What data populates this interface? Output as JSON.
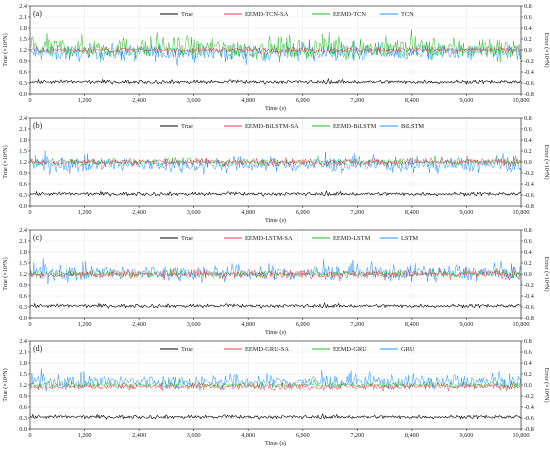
{
  "chart_data": [
    {
      "type": "line",
      "panel_label": "(a)",
      "xlabel": "Time (s)",
      "ylabel_left": "True (×10⁴N)",
      "ylabel_right": "Error (×10⁴N)",
      "xlim": [
        0,
        10800
      ],
      "ylim_left": [
        0,
        2.4
      ],
      "ylim_right": [
        -0.8,
        0.8
      ],
      "x_ticks": [
        "0",
        "1,200",
        "2,400",
        "3,600",
        "4,800",
        "6,000",
        "7,200",
        "8,400",
        "9,600",
        "10,800"
      ],
      "y_ticks_left": [
        "0.0",
        "0.3",
        "0.6",
        "0.9",
        "1.2",
        "1.5",
        "1.8",
        "2.1",
        "2.4"
      ],
      "y_ticks_right": [
        "-0.8",
        "-0.6",
        "-0.4",
        "-0.2",
        "0.0",
        "0.2",
        "0.4",
        "0.6",
        "0.8"
      ],
      "legend": [
        "True",
        "EEMD-TCN-SA",
        "EEMD-TCN",
        "TCN"
      ],
      "series": [
        {
          "name": "True",
          "axis": "left",
          "color": "#000000",
          "approx_mean": 0.33,
          "approx_amplitude": 0.05
        },
        {
          "name": "EEMD-TCN-SA",
          "axis": "right",
          "color": "#e8384f",
          "approx_mean": 0.0,
          "approx_amplitude": 0.05
        },
        {
          "name": "EEMD-TCN",
          "axis": "right",
          "color": "#22bb22",
          "approx_mean": 0.03,
          "approx_amplitude": 0.2
        },
        {
          "name": "TCN",
          "axis": "right",
          "color": "#1e90ff",
          "approx_mean": -0.05,
          "approx_amplitude": 0.15
        }
      ],
      "grid": true
    },
    {
      "type": "line",
      "panel_label": "(b)",
      "xlabel": "Time (s)",
      "ylabel_left": "True (×10⁴N)",
      "ylabel_right": "Error (×10⁴N)",
      "xlim": [
        0,
        10800
      ],
      "ylim_left": [
        0,
        2.4
      ],
      "ylim_right": [
        -0.8,
        0.8
      ],
      "x_ticks": [
        "0",
        "1,200",
        "2,400",
        "3,600",
        "4,800",
        "6,000",
        "7,200",
        "8,400",
        "9,600",
        "10,800"
      ],
      "y_ticks_left": [
        "0.0",
        "0.3",
        "0.6",
        "0.9",
        "1.2",
        "1.5",
        "1.8",
        "2.1",
        "2.4"
      ],
      "y_ticks_right": [
        "-0.8",
        "-0.6",
        "-0.4",
        "-0.2",
        "0.0",
        "0.2",
        "0.4",
        "0.6",
        "0.8"
      ],
      "legend": [
        "True",
        "EEMD-BiLSTM-SA",
        "EEMD-BiLSTM",
        "BiLSTM"
      ],
      "series": [
        {
          "name": "True",
          "axis": "left",
          "color": "#000000",
          "approx_mean": 0.33,
          "approx_amplitude": 0.05
        },
        {
          "name": "EEMD-BiLSTM-SA",
          "axis": "right",
          "color": "#e8384f",
          "approx_mean": 0.0,
          "approx_amplitude": 0.07
        },
        {
          "name": "EEMD-BiLSTM",
          "axis": "right",
          "color": "#22bb22",
          "approx_mean": 0.0,
          "approx_amplitude": 0.06
        },
        {
          "name": "BiLSTM",
          "axis": "right",
          "color": "#1e90ff",
          "approx_mean": -0.05,
          "approx_amplitude": 0.14
        }
      ],
      "grid": true
    },
    {
      "type": "line",
      "panel_label": "(c)",
      "xlabel": "Time (s)",
      "ylabel_left": "True (×10⁴N)",
      "ylabel_right": "Error (×10⁴N)",
      "xlim": [
        0,
        10800
      ],
      "ylim_left": [
        0,
        2.4
      ],
      "ylim_right": [
        -0.8,
        0.8
      ],
      "x_ticks": [
        "0",
        "1,200",
        "2,400",
        "3,600",
        "4,800",
        "6,000",
        "7,200",
        "8,400",
        "9,600",
        "10,800"
      ],
      "y_ticks_left": [
        "0.0",
        "0.3",
        "0.6",
        "0.9",
        "1.2",
        "1.5",
        "1.8",
        "2.1",
        "2.4"
      ],
      "y_ticks_right": [
        "-0.8",
        "-0.6",
        "-0.4",
        "-0.2",
        "0.0",
        "0.2",
        "0.4",
        "0.6",
        "0.8"
      ],
      "legend": [
        "True",
        "EEMD-LSTM-SA",
        "EEMD-LSTM",
        "LSTM"
      ],
      "series": [
        {
          "name": "True",
          "axis": "left",
          "color": "#000000",
          "approx_mean": 0.33,
          "approx_amplitude": 0.05
        },
        {
          "name": "EEMD-LSTM-SA",
          "axis": "right",
          "color": "#e8384f",
          "approx_mean": 0.0,
          "approx_amplitude": 0.08
        },
        {
          "name": "EEMD-LSTM",
          "axis": "right",
          "color": "#22bb22",
          "approx_mean": 0.0,
          "approx_amplitude": 0.06
        },
        {
          "name": "LSTM",
          "axis": "right",
          "color": "#1e90ff",
          "approx_mean": 0.02,
          "approx_amplitude": 0.15
        }
      ],
      "grid": true
    },
    {
      "type": "line",
      "panel_label": "(d)",
      "xlabel": "Time (s)",
      "ylabel_left": "True (×10⁴N)",
      "ylabel_right": "Error (×10⁴N)",
      "xlim": [
        0,
        10800
      ],
      "ylim_left": [
        0,
        2.4
      ],
      "ylim_right": [
        -0.8,
        0.8
      ],
      "x_ticks": [
        "0",
        "1,200",
        "2,400",
        "3,600",
        "4,800",
        "6,000",
        "7,200",
        "8,400",
        "9,600",
        "10,800"
      ],
      "y_ticks_left": [
        "0.0",
        "0.3",
        "0.6",
        "0.9",
        "1.2",
        "1.5",
        "1.8",
        "2.1",
        "2.4"
      ],
      "y_ticks_right": [
        "-0.8",
        "-0.6",
        "-0.4",
        "-0.2",
        "0.0",
        "0.2",
        "0.4",
        "0.6",
        "0.8"
      ],
      "legend": [
        "True",
        "EEMD-GRU-SA",
        "EEMD-GRU",
        "GRU"
      ],
      "series": [
        {
          "name": "True",
          "axis": "left",
          "color": "#000000",
          "approx_mean": 0.33,
          "approx_amplitude": 0.05
        },
        {
          "name": "EEMD-GRU-SA",
          "axis": "right",
          "color": "#e8384f",
          "approx_mean": -0.03,
          "approx_amplitude": 0.06
        },
        {
          "name": "EEMD-GRU",
          "axis": "right",
          "color": "#22bb22",
          "approx_mean": 0.0,
          "approx_amplitude": 0.06
        },
        {
          "name": "GRU",
          "axis": "right",
          "color": "#1e90ff",
          "approx_mean": 0.06,
          "approx_amplitude": 0.13
        }
      ],
      "grid": true
    }
  ]
}
